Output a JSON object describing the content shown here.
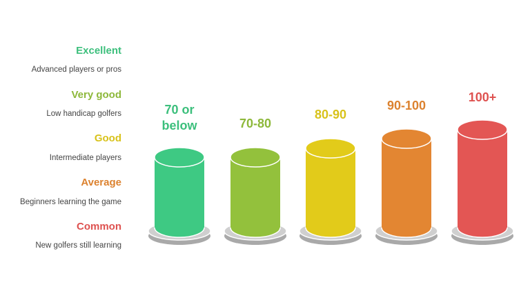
{
  "levels": [
    {
      "title": "Excellent",
      "description": "Advanced players or pros",
      "score": "70 or below"
    },
    {
      "title": "Very good",
      "description": "Low handicap golfers",
      "score": "70-80"
    },
    {
      "title": "Good",
      "description": "Intermediate players",
      "score": "80-90"
    },
    {
      "title": "Average",
      "description": "Beginners learning the game",
      "score": "90-100"
    },
    {
      "title": "Common",
      "description": "New golfers still learning",
      "score": "100+"
    }
  ]
}
